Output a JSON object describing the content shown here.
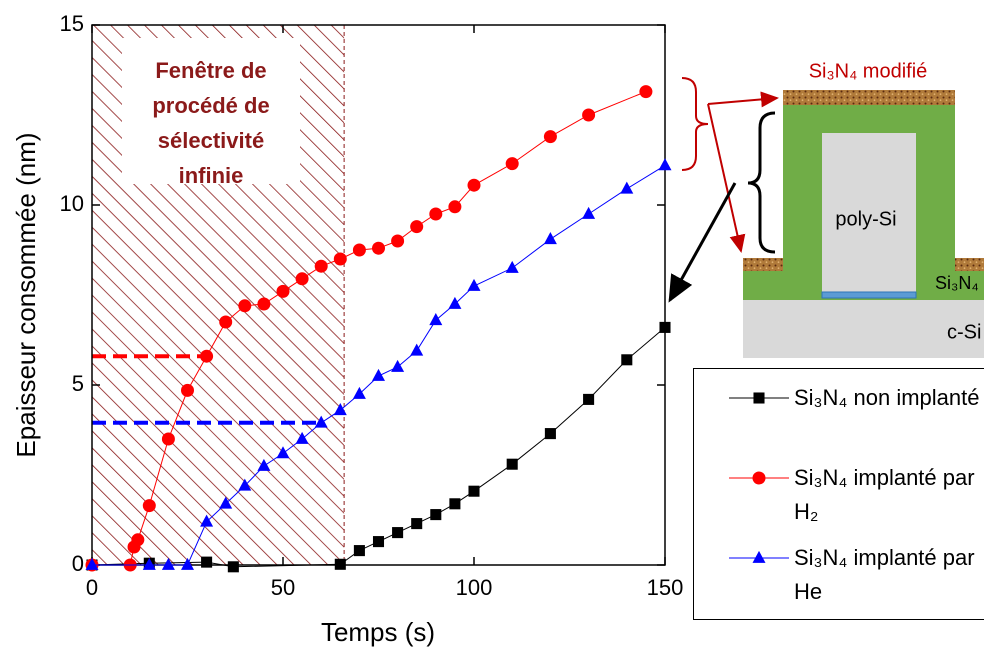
{
  "chart_data": {
    "type": "line",
    "xlabel": "Temps (s)",
    "ylabel": "Epaisseur consommée (nm)",
    "xlim": [
      0,
      150
    ],
    "xticks": [
      0,
      50,
      100,
      150
    ],
    "ylim": [
      0,
      15
    ],
    "yticks": [
      0,
      5,
      10,
      15
    ],
    "series": [
      {
        "name": "Si₃N₄ non implanté",
        "color": "#000000",
        "marker": "square",
        "x": [
          0,
          15,
          30,
          37,
          65,
          70,
          75,
          80,
          85,
          90,
          95,
          100,
          110,
          120,
          130,
          140,
          150
        ],
        "values": [
          0,
          0.05,
          0.08,
          -0.05,
          0.02,
          0.4,
          0.65,
          0.9,
          1.15,
          1.4,
          1.7,
          2.05,
          2.8,
          3.65,
          4.6,
          5.7,
          6.6
        ]
      },
      {
        "name": "Si₃N₄ implanté par H₂",
        "color": "#ff0000",
        "marker": "circle",
        "x": [
          0,
          10,
          11,
          12,
          15,
          20,
          25,
          30,
          35,
          40,
          45,
          50,
          55,
          60,
          65,
          70,
          75,
          80,
          85,
          90,
          95,
          100,
          110,
          120,
          130,
          145
        ],
        "values": [
          0,
          0,
          0.5,
          0.7,
          1.65,
          3.5,
          4.85,
          5.8,
          6.75,
          7.2,
          7.25,
          7.6,
          7.95,
          8.3,
          8.5,
          8.75,
          8.8,
          9.0,
          9.4,
          9.75,
          9.95,
          10.55,
          11.15,
          11.9,
          12.5,
          13.15
        ]
      },
      {
        "name": "Si₃N₄ implanté par He",
        "color": "#0000ff",
        "marker": "triangle",
        "x": [
          0,
          15,
          20,
          25,
          30,
          35,
          40,
          45,
          50,
          55,
          60,
          65,
          70,
          75,
          80,
          85,
          90,
          95,
          100,
          110,
          120,
          130,
          140,
          150
        ],
        "values": [
          0,
          0,
          0,
          0,
          1.2,
          1.7,
          2.2,
          2.75,
          3.1,
          3.5,
          3.95,
          4.3,
          4.75,
          5.25,
          5.5,
          5.95,
          6.8,
          7.25,
          7.75,
          8.25,
          9.05,
          9.75,
          10.45,
          11.1
        ]
      }
    ],
    "reference_lines": [
      {
        "y": 5.8,
        "x": [
          0,
          30
        ],
        "color": "#ff0000"
      },
      {
        "y": 3.95,
        "x": [
          0,
          60
        ],
        "color": "#0000ff"
      }
    ],
    "shaded_region": {
      "x": [
        0,
        66
      ],
      "color": "#8b1a1a",
      "label": [
        "Fenêtre de",
        "procédé de",
        "sélectivité",
        "infinie"
      ]
    }
  },
  "diagram": {
    "labels": {
      "modified": "Si₃N₄ modifié",
      "poly": "poly-Si",
      "nitride": "Si₃N₄",
      "substrate": "c-Si"
    }
  }
}
